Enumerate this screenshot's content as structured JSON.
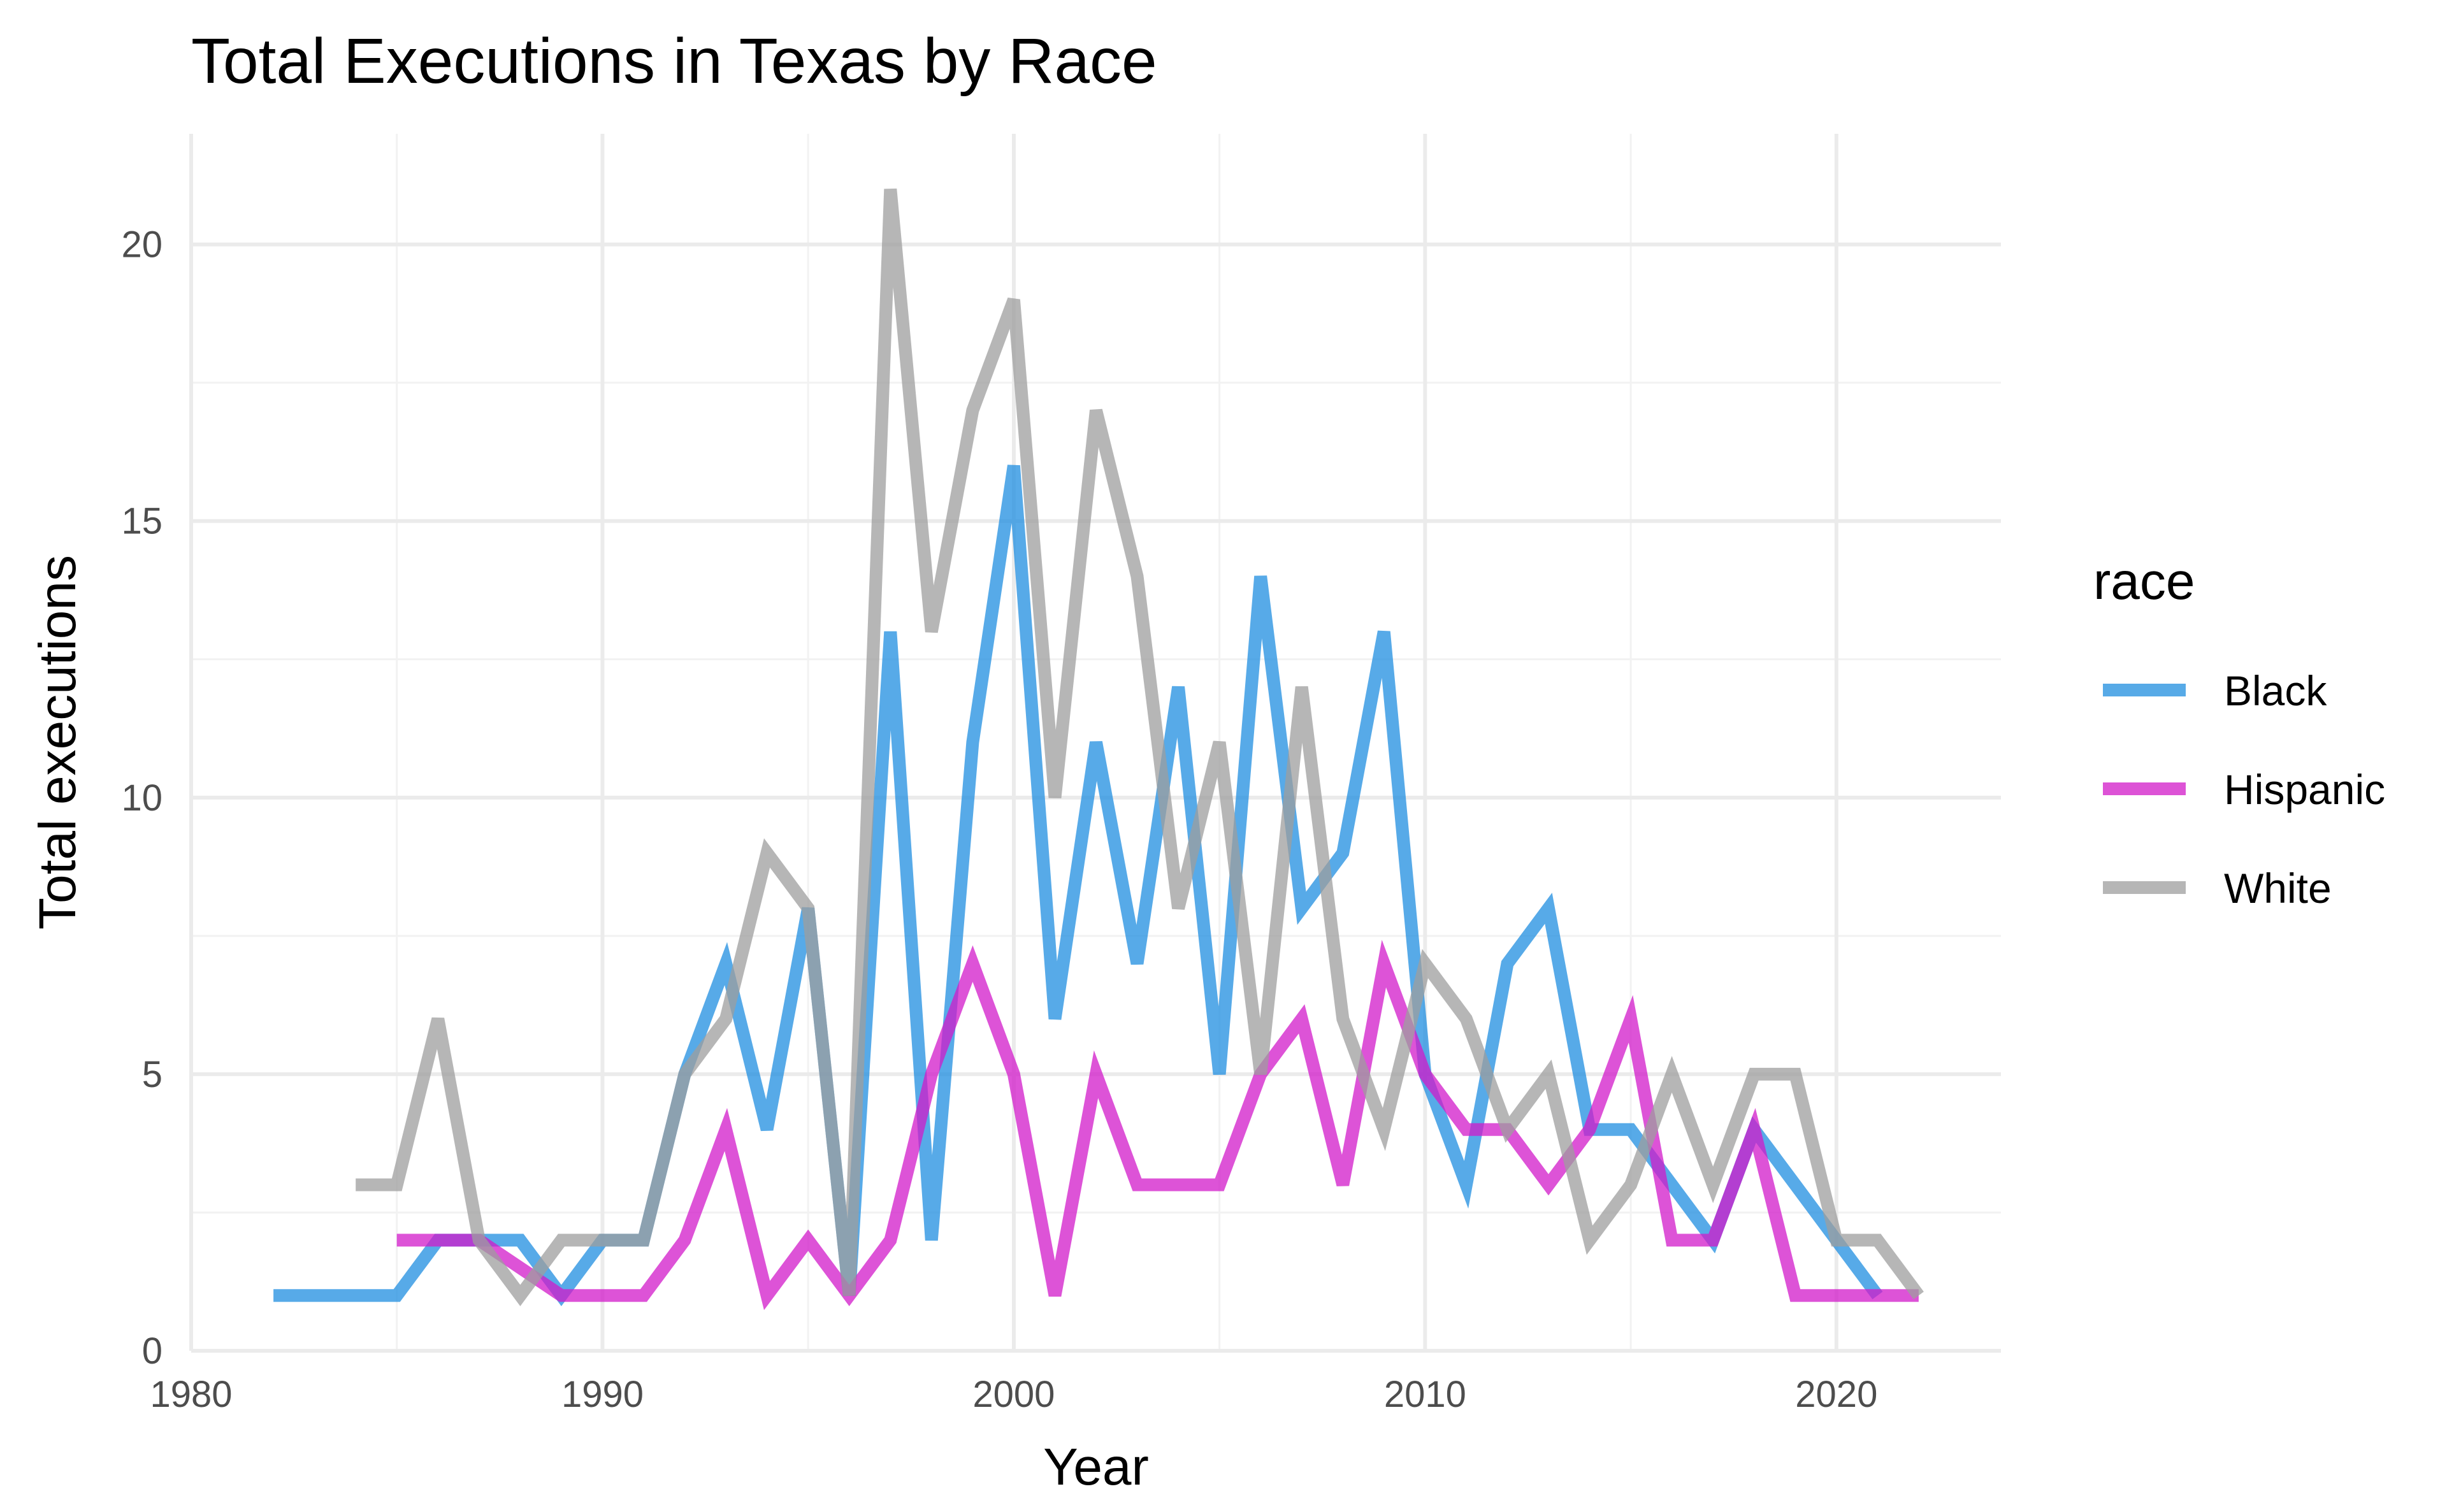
{
  "chart_data": {
    "type": "line",
    "title": "Total Executions in Texas by Race",
    "xlabel": "Year",
    "ylabel": "Total executions",
    "xlim": [
      1980,
      2024
    ],
    "ylim": [
      0,
      22
    ],
    "x_ticks": [
      1980,
      1990,
      2000,
      2010,
      2020
    ],
    "y_ticks": [
      0,
      5,
      10,
      15,
      20
    ],
    "grid": true,
    "legend": {
      "title": "race",
      "position": "right"
    },
    "series": [
      {
        "name": "Black",
        "color": "#1f8ee0",
        "points": [
          [
            1982,
            1
          ],
          [
            1983,
            1
          ],
          [
            1984,
            1
          ],
          [
            1985,
            1
          ],
          [
            1986,
            2
          ],
          [
            1987,
            2
          ],
          [
            1988,
            2
          ],
          [
            1989,
            1
          ],
          [
            1990,
            2
          ],
          [
            1991,
            2
          ],
          [
            1992,
            5
          ],
          [
            1993,
            7
          ],
          [
            1994,
            4
          ],
          [
            1995,
            8
          ],
          [
            1996,
            1
          ],
          [
            1997,
            13
          ],
          [
            1998,
            2
          ],
          [
            1999,
            11
          ],
          [
            2000,
            16
          ],
          [
            2001,
            6
          ],
          [
            2002,
            11
          ],
          [
            2003,
            7
          ],
          [
            2004,
            12
          ],
          [
            2005,
            5
          ],
          [
            2006,
            14
          ],
          [
            2007,
            8
          ],
          [
            2008,
            9
          ],
          [
            2009,
            13
          ],
          [
            2010,
            5
          ],
          [
            2011,
            3
          ],
          [
            2012,
            7
          ],
          [
            2013,
            8
          ],
          [
            2014,
            4
          ],
          [
            2015,
            4
          ],
          [
            2016,
            3
          ],
          [
            2017,
            2
          ],
          [
            2018,
            4
          ],
          [
            2019,
            3
          ],
          [
            2020,
            2
          ],
          [
            2021,
            1
          ]
        ]
      },
      {
        "name": "Hispanic",
        "color": "#d21ac9",
        "points": [
          [
            1985,
            2
          ],
          [
            1986,
            2
          ],
          [
            1987,
            2
          ],
          [
            1988,
            1.5
          ],
          [
            1989,
            1
          ],
          [
            1990,
            1
          ],
          [
            1991,
            1
          ],
          [
            1992,
            2
          ],
          [
            1993,
            4
          ],
          [
            1994,
            1
          ],
          [
            1995,
            2
          ],
          [
            1996,
            1
          ],
          [
            1997,
            2
          ],
          [
            1998,
            5
          ],
          [
            1999,
            7
          ],
          [
            2000,
            5
          ],
          [
            2001,
            1
          ],
          [
            2002,
            5
          ],
          [
            2003,
            3
          ],
          [
            2004,
            3
          ],
          [
            2005,
            3
          ],
          [
            2006,
            5
          ],
          [
            2007,
            6
          ],
          [
            2008,
            3
          ],
          [
            2009,
            7
          ],
          [
            2010,
            5
          ],
          [
            2011,
            4
          ],
          [
            2012,
            4
          ],
          [
            2013,
            3
          ],
          [
            2014,
            4
          ],
          [
            2015,
            6
          ],
          [
            2016,
            2
          ],
          [
            2017,
            2
          ],
          [
            2018,
            4
          ],
          [
            2019,
            1
          ],
          [
            2020,
            1
          ],
          [
            2021,
            1
          ],
          [
            2022,
            1
          ]
        ]
      },
      {
        "name": "White",
        "color": "#9e9e9e",
        "points": [
          [
            1984,
            3
          ],
          [
            1985,
            3
          ],
          [
            1986,
            6
          ],
          [
            1987,
            2
          ],
          [
            1988,
            1
          ],
          [
            1989,
            2
          ],
          [
            1990,
            2
          ],
          [
            1991,
            2
          ],
          [
            1992,
            5
          ],
          [
            1993,
            6
          ],
          [
            1994,
            9
          ],
          [
            1995,
            8
          ],
          [
            1996,
            1
          ],
          [
            1997,
            21
          ],
          [
            1998,
            13
          ],
          [
            1999,
            17
          ],
          [
            2000,
            19
          ],
          [
            2001,
            10
          ],
          [
            2002,
            17
          ],
          [
            2003,
            14
          ],
          [
            2004,
            8
          ],
          [
            2005,
            11
          ],
          [
            2006,
            5
          ],
          [
            2007,
            12
          ],
          [
            2008,
            6
          ],
          [
            2009,
            4
          ],
          [
            2010,
            7
          ],
          [
            2011,
            6
          ],
          [
            2012,
            4
          ],
          [
            2013,
            5
          ],
          [
            2014,
            2
          ],
          [
            2015,
            3
          ],
          [
            2016,
            5
          ],
          [
            2017,
            3
          ],
          [
            2018,
            5
          ],
          [
            2019,
            5
          ],
          [
            2020,
            2
          ],
          [
            2021,
            2
          ],
          [
            2022,
            1
          ]
        ]
      }
    ]
  }
}
